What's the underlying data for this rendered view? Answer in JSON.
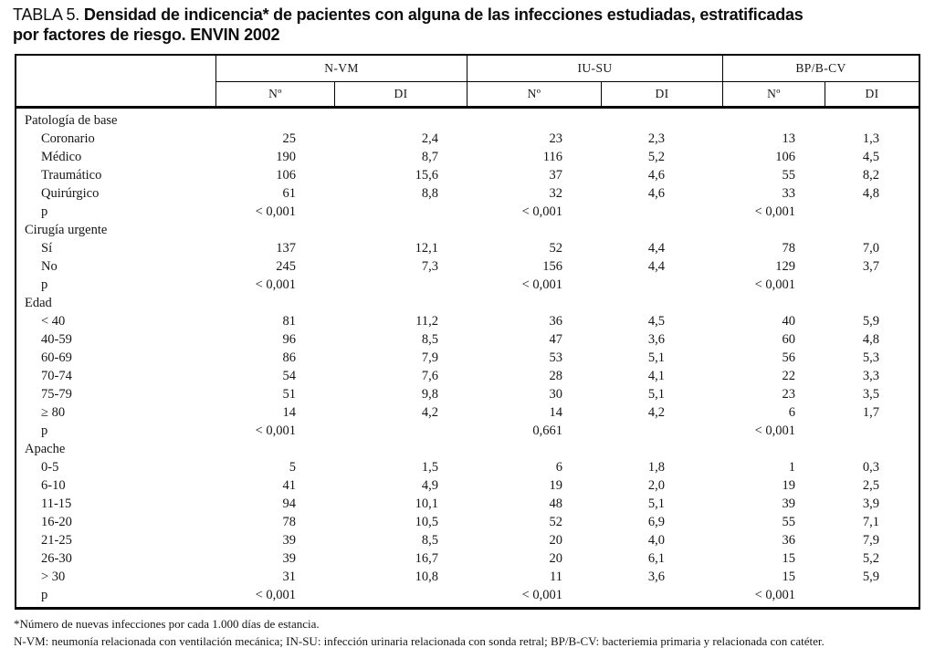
{
  "title": {
    "label": "TABLA 5.",
    "line1_bold": "Densidad de indicencia* de pacientes con alguna de las infecciones estudiadas, estratificadas",
    "line2_bold": "por factores de riesgo. ENVIN 2002"
  },
  "table": {
    "groups": [
      {
        "label": "N-VM"
      },
      {
        "label": "IU-SU"
      },
      {
        "label": "BP/B-CV"
      }
    ],
    "subheaders": {
      "n": "Nº",
      "di": "DI"
    },
    "sections": [
      {
        "label": "Patología de base",
        "rows": [
          {
            "label": "Coronario",
            "values": [
              "25",
              "2,4",
              "23",
              "2,3",
              "13",
              "1,3"
            ]
          },
          {
            "label": "Médico",
            "values": [
              "190",
              "8,7",
              "116",
              "5,2",
              "106",
              "4,5"
            ]
          },
          {
            "label": "Traumático",
            "values": [
              "106",
              "15,6",
              "37",
              "4,6",
              "55",
              "8,2"
            ]
          },
          {
            "label": "Quirúrgico",
            "values": [
              "61",
              "8,8",
              "32",
              "4,6",
              "33",
              "4,8"
            ]
          },
          {
            "label": "p",
            "values": [
              "< 0,001",
              "",
              "< 0,001",
              "",
              "< 0,001",
              ""
            ]
          }
        ]
      },
      {
        "label": "Cirugía urgente",
        "rows": [
          {
            "label": "Sí",
            "values": [
              "137",
              "12,1",
              "52",
              "4,4",
              "78",
              "7,0"
            ]
          },
          {
            "label": "No",
            "values": [
              "245",
              "7,3",
              "156",
              "4,4",
              "129",
              "3,7"
            ]
          },
          {
            "label": "p",
            "values": [
              "< 0,001",
              "",
              "< 0,001",
              "",
              "< 0,001",
              ""
            ]
          }
        ]
      },
      {
        "label": "Edad",
        "rows": [
          {
            "label": "< 40",
            "values": [
              "81",
              "11,2",
              "36",
              "4,5",
              "40",
              "5,9"
            ]
          },
          {
            "label": "40-59",
            "values": [
              "96",
              "8,5",
              "47",
              "3,6",
              "60",
              "4,8"
            ]
          },
          {
            "label": "60-69",
            "values": [
              "86",
              "7,9",
              "53",
              "5,1",
              "56",
              "5,3"
            ]
          },
          {
            "label": "70-74",
            "values": [
              "54",
              "7,6",
              "28",
              "4,1",
              "22",
              "3,3"
            ]
          },
          {
            "label": "75-79",
            "values": [
              "51",
              "9,8",
              "30",
              "5,1",
              "23",
              "3,5"
            ]
          },
          {
            "label": "≥ 80",
            "values": [
              "14",
              "4,2",
              "14",
              "4,2",
              "6",
              "1,7"
            ]
          },
          {
            "label": "p",
            "values": [
              "< 0,001",
              "",
              "0,661",
              "",
              "< 0,001",
              ""
            ]
          }
        ]
      },
      {
        "label": "Apache",
        "rows": [
          {
            "label": "0-5",
            "values": [
              "5",
              "1,5",
              "6",
              "1,8",
              "1",
              "0,3"
            ]
          },
          {
            "label": "6-10",
            "values": [
              "41",
              "4,9",
              "19",
              "2,0",
              "19",
              "2,5"
            ]
          },
          {
            "label": "11-15",
            "values": [
              "94",
              "10,1",
              "48",
              "5,1",
              "39",
              "3,9"
            ]
          },
          {
            "label": "16-20",
            "values": [
              "78",
              "10,5",
              "52",
              "6,9",
              "55",
              "7,1"
            ]
          },
          {
            "label": "21-25",
            "values": [
              "39",
              "8,5",
              "20",
              "4,0",
              "36",
              "7,9"
            ]
          },
          {
            "label": "26-30",
            "values": [
              "39",
              "16,7",
              "20",
              "6,1",
              "15",
              "5,2"
            ]
          },
          {
            "label": "> 30",
            "values": [
              "31",
              "10,8",
              "11",
              "3,6",
              "15",
              "5,9"
            ]
          },
          {
            "label": "p",
            "values": [
              "< 0,001",
              "",
              "< 0,001",
              "",
              "< 0,001",
              ""
            ]
          }
        ]
      }
    ]
  },
  "footnotes": {
    "line1": "*Número de nuevas infecciones por cada 1.000 días de estancia.",
    "line2": "N-VM: neumonía relacionada con ventilación mecánica; IN-SU: infección urinaria relacionada con sonda retral; BP/B-CV: bacteriemia primaria y relacionada con catéter."
  }
}
